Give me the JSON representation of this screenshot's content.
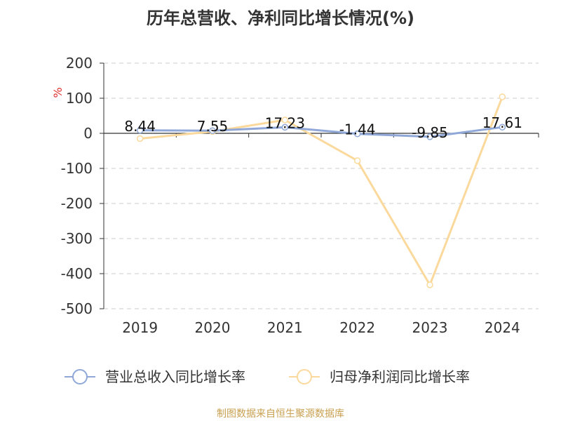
{
  "colors": {
    "revenue": "#8fa8d8",
    "profit": "#fbd99c",
    "axis": "#333333",
    "grid": "#cccccc",
    "unit": "#e03030",
    "source": "#c8a050"
  },
  "source_text": "制图数据来自恒生聚源数据库",
  "chart_data": {
    "type": "line",
    "title": "历年总营收、净利同比增长情况(%)",
    "ylabel": "%",
    "categories": [
      "2019",
      "2020",
      "2021",
      "2022",
      "2023",
      "2024"
    ],
    "ylim": [
      -500,
      200
    ],
    "yticks": [
      200,
      100,
      0,
      -100,
      -200,
      -300,
      -400,
      -500
    ],
    "ytick_labels": [
      "200",
      "100",
      "0",
      "-100",
      "-200",
      "-300",
      "-400",
      "-500"
    ],
    "grid": true,
    "legend_position": "bottom",
    "series": [
      {
        "name": "营业总收入同比增长率",
        "values": [
          8.44,
          7.55,
          17.23,
          -1.44,
          -9.85,
          17.61
        ],
        "labels": [
          "8.44",
          "7.55",
          "17.23",
          "-1.44",
          "-9.85",
          "17.61"
        ],
        "color_key": "revenue"
      },
      {
        "name": "归母净利润同比增长率",
        "values": [
          -15,
          5,
          38,
          -78,
          -432,
          104
        ],
        "color_key": "profit"
      }
    ]
  }
}
